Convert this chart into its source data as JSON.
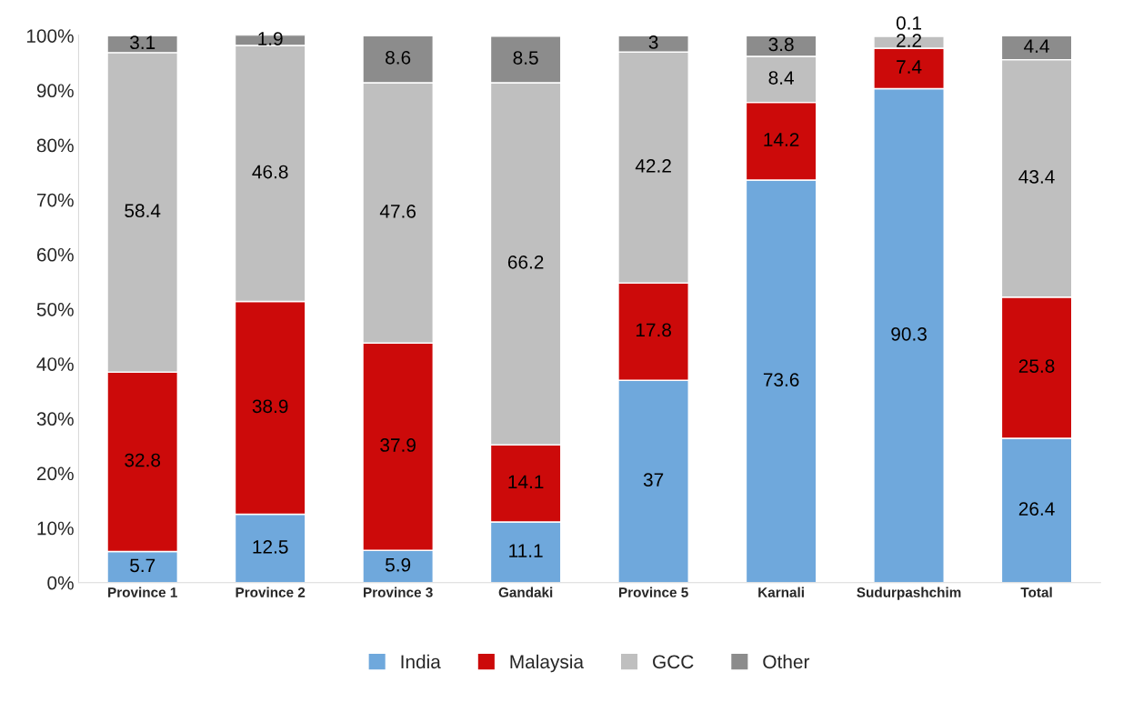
{
  "chart_data": {
    "type": "bar",
    "stacked": true,
    "data_labels": true,
    "legend": "bottom",
    "grid": false,
    "categories": [
      "Province 1",
      "Province 2",
      "Province 3",
      "Gandaki",
      "Province 5",
      "Karnali",
      "Sudurpashchim",
      "Total"
    ],
    "series": [
      {
        "name": "India",
        "color": "#6fa8dc",
        "values": [
          5.7,
          12.5,
          5.9,
          11.1,
          37,
          73.6,
          90.3,
          26.4
        ]
      },
      {
        "name": "Malaysia",
        "color": "#cc0a0a",
        "values": [
          32.8,
          38.9,
          37.9,
          14.1,
          17.8,
          14.2,
          7.4,
          25.8
        ]
      },
      {
        "name": "GCC",
        "color": "#bfbfbf",
        "values": [
          58.4,
          46.8,
          47.6,
          66.2,
          42.2,
          8.4,
          2.2,
          43.4
        ]
      },
      {
        "name": "Other",
        "color": "#8c8c8c",
        "values": [
          3.1,
          1.9,
          8.6,
          8.5,
          3,
          3.8,
          0.1,
          4.4
        ]
      }
    ],
    "ylim": [
      0,
      100.1
    ],
    "yticks": [
      {
        "value": 0,
        "label": "0%"
      },
      {
        "value": 10,
        "label": "10%"
      },
      {
        "value": 20,
        "label": "20%"
      },
      {
        "value": 30,
        "label": "30%"
      },
      {
        "value": 40,
        "label": "40%"
      },
      {
        "value": 50,
        "label": "50%"
      },
      {
        "value": 60,
        "label": "60%"
      },
      {
        "value": 70,
        "label": "70%"
      },
      {
        "value": 80,
        "label": "80%"
      },
      {
        "value": 90,
        "label": "90%"
      },
      {
        "value": 100,
        "label": "100%"
      }
    ]
  }
}
